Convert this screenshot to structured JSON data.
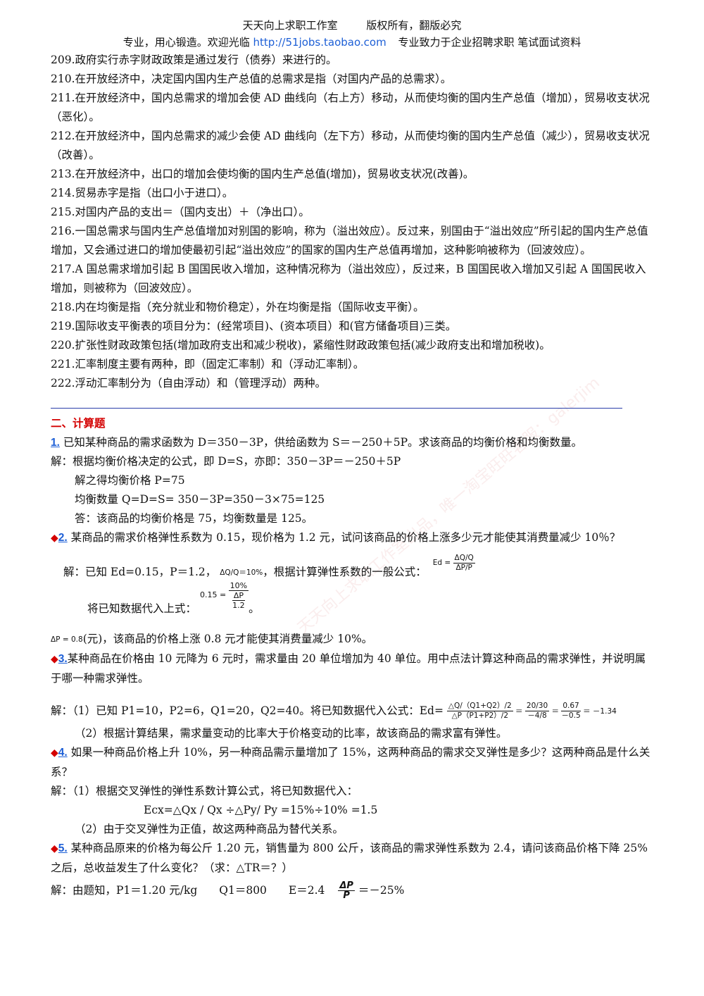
{
  "header": {
    "studio": "天天向上求职工作室",
    "copyright": "版权所有，翻版必究",
    "slogan": "专业，用心锻造。欢迎光临",
    "url": "http://51jobs.taobao.com",
    "tagline": "专业致力于企业招聘求职 笔试面试资料"
  },
  "items": [
    "209.政府实行赤字财政政策是通过发行（债券）来进行的。",
    "210.在开放经济中，决定国内国内生产总值的总需求是指（对国内产品的总需求）。",
    "211.在开放经济中，国内总需求的增加会使 AD 曲线向（右上方）移动，从而使均衡的国内生产总值（增加），贸易收支状况（恶化）。",
    "212.在开放经济中，国内总需求的减少会使 AD 曲线向（左下方）移动，从而使均衡的国内生产总值（减少），贸易收支状况（改善）。",
    "213.在开放经济中，出口的增加会使均衡的国内生产总值(增加)，贸易收支状况(改善)。",
    "214.贸易赤字是指（出口小于进口）。",
    "215.对国内产品的支出＝（国内支出）＋（净出口）。",
    "216.一国总需求与国内生产总值增加对别国的影响，称为（溢出效应）。反过来，别国由于“溢出效应”所引起的国内生产总值增加，又会通过进口的增加使最初引起“溢出效应”的国家的国内生产总值再增加，这种影响被称为（回波效应）。",
    "217.A 国总需求增加引起 B 国国民收入增加，这种情况称为（溢出效应），反过来，B 国国民收入增加又引起 A 国国民收入增加，则被称为（回波效应）。",
    "218.内在均衡是指（充分就业和物价稳定），外在均衡是指（国际收支平衡）。",
    "219.国际收支平衡表的项目分为：(经常项目)、(资本项目）和(官方储备项目)三类。",
    "220.扩张性财政政策包括(增加政府支出和减少税收)，紧缩性财政政策包括(减少政府支出和增加税收)。",
    "221.汇率制度主要有两种，即（固定汇率制）和（浮动汇率制）。",
    "222.浮动汇率制分为（自由浮动）和（管理浮动）两种。"
  ],
  "section_title": "二、计算题",
  "q1": {
    "num": "1.",
    "question": "已知某种商品的需求函数为 D＝350－3P，供给函数为 S＝－250＋5P。求该商品的均衡价格和均衡数量。",
    "l1": "解：根据均衡价格决定的公式，即 D=S，亦即：350－3P＝－250＋5P",
    "l2": "解之得均衡价格 P=75",
    "l3": "均衡数量 Q=D=S= 350－3P=350－3×75=125",
    "l4": "答：该商品的均衡价格是 75，均衡数量是 125。"
  },
  "q2": {
    "mark": "◆",
    "num": "2.",
    "question": "某商品的需求价格弹性系数为 0.15，现价格为 1.2 元，试问该商品的价格上涨多少元才能使其消费量减少 10％？",
    "l1a": "解：已知 Ed=0.15，P＝1.2，",
    "l1_formula": "ΔQ/Q＝10%",
    "l1b": "，根据计算弹性系数的一般公式：",
    "ed_label": "Ed =",
    "ed_num": "ΔQ/Q",
    "ed_den": "ΔP/P",
    "l2": "将已知数据代入上式：",
    "sub_lhs": "0.15 =",
    "sub_num": "10%",
    "sub_den_top": "ΔP",
    "sub_den_bot": "1.2",
    "l2_end": "。",
    "l3_formula": "ΔP = 0.8",
    "l3": "(元)，该商品的价格上涨 0.8 元才能使其消费量减少 10%。"
  },
  "q3": {
    "mark": "◆",
    "num": "3.",
    "question": "某种商品在价格由 10 元降为 6 元时，需求量由 20 单位增加为 40 单位。用中点法计算这种商品的需求弹性，并说明属于哪一种需求弹性。",
    "l1": "解：（1）已知 P1=10，P2=6，Q1=20，Q2=40。将已知数据代入公式：Ed=",
    "f_num": "△Q/（Q1+Q2）/2",
    "f_den": "△P（P1+P2）/2",
    "f2_num": "20/30",
    "f2_den": "－4/8",
    "f3_num": "0.67",
    "f3_den": "－0.5",
    "result": "－1.34",
    "l2": "（2）根据计算结果，需求量变动的比率大于价格变动的比率，故该商品的需求富有弹性。"
  },
  "q4": {
    "mark": "◆",
    "num": "4.",
    "question": "如果一种商品价格上升 10%，另一种商品需示量增加了 15%，这两种商品的需求交叉弹性是多少？这两种商品是什么关系？",
    "l1": "解：（1）根据交叉弹性的弹性系数计算公式，将已知数据代入：",
    "l2": "Ecx=△Qx / Qx ÷△Py/ Py =15%÷10% =1.5",
    "l3": "（2）由于交叉弹性为正值，故这两种商品为替代关系。"
  },
  "q5": {
    "mark": "◆",
    "num": "5.",
    "question": "某种商品原来的价格为每公斤 1.20 元，销售量为 800 公斤，该商品的需求弹性系数为 2.4，请问该商品价格下降 25%之后，总收益发生了什么变化？（求：△TR＝？）",
    "l1": "解：由题知，P1＝1.20 元/kg　　Q1＝800　　E＝2.4",
    "f_num": "ΔP",
    "f_den": "P",
    "l1_end": "＝－25%"
  },
  "watermark": "天天向上求职工作室出品，唯一淘宝旺旺客服：galerjim"
}
